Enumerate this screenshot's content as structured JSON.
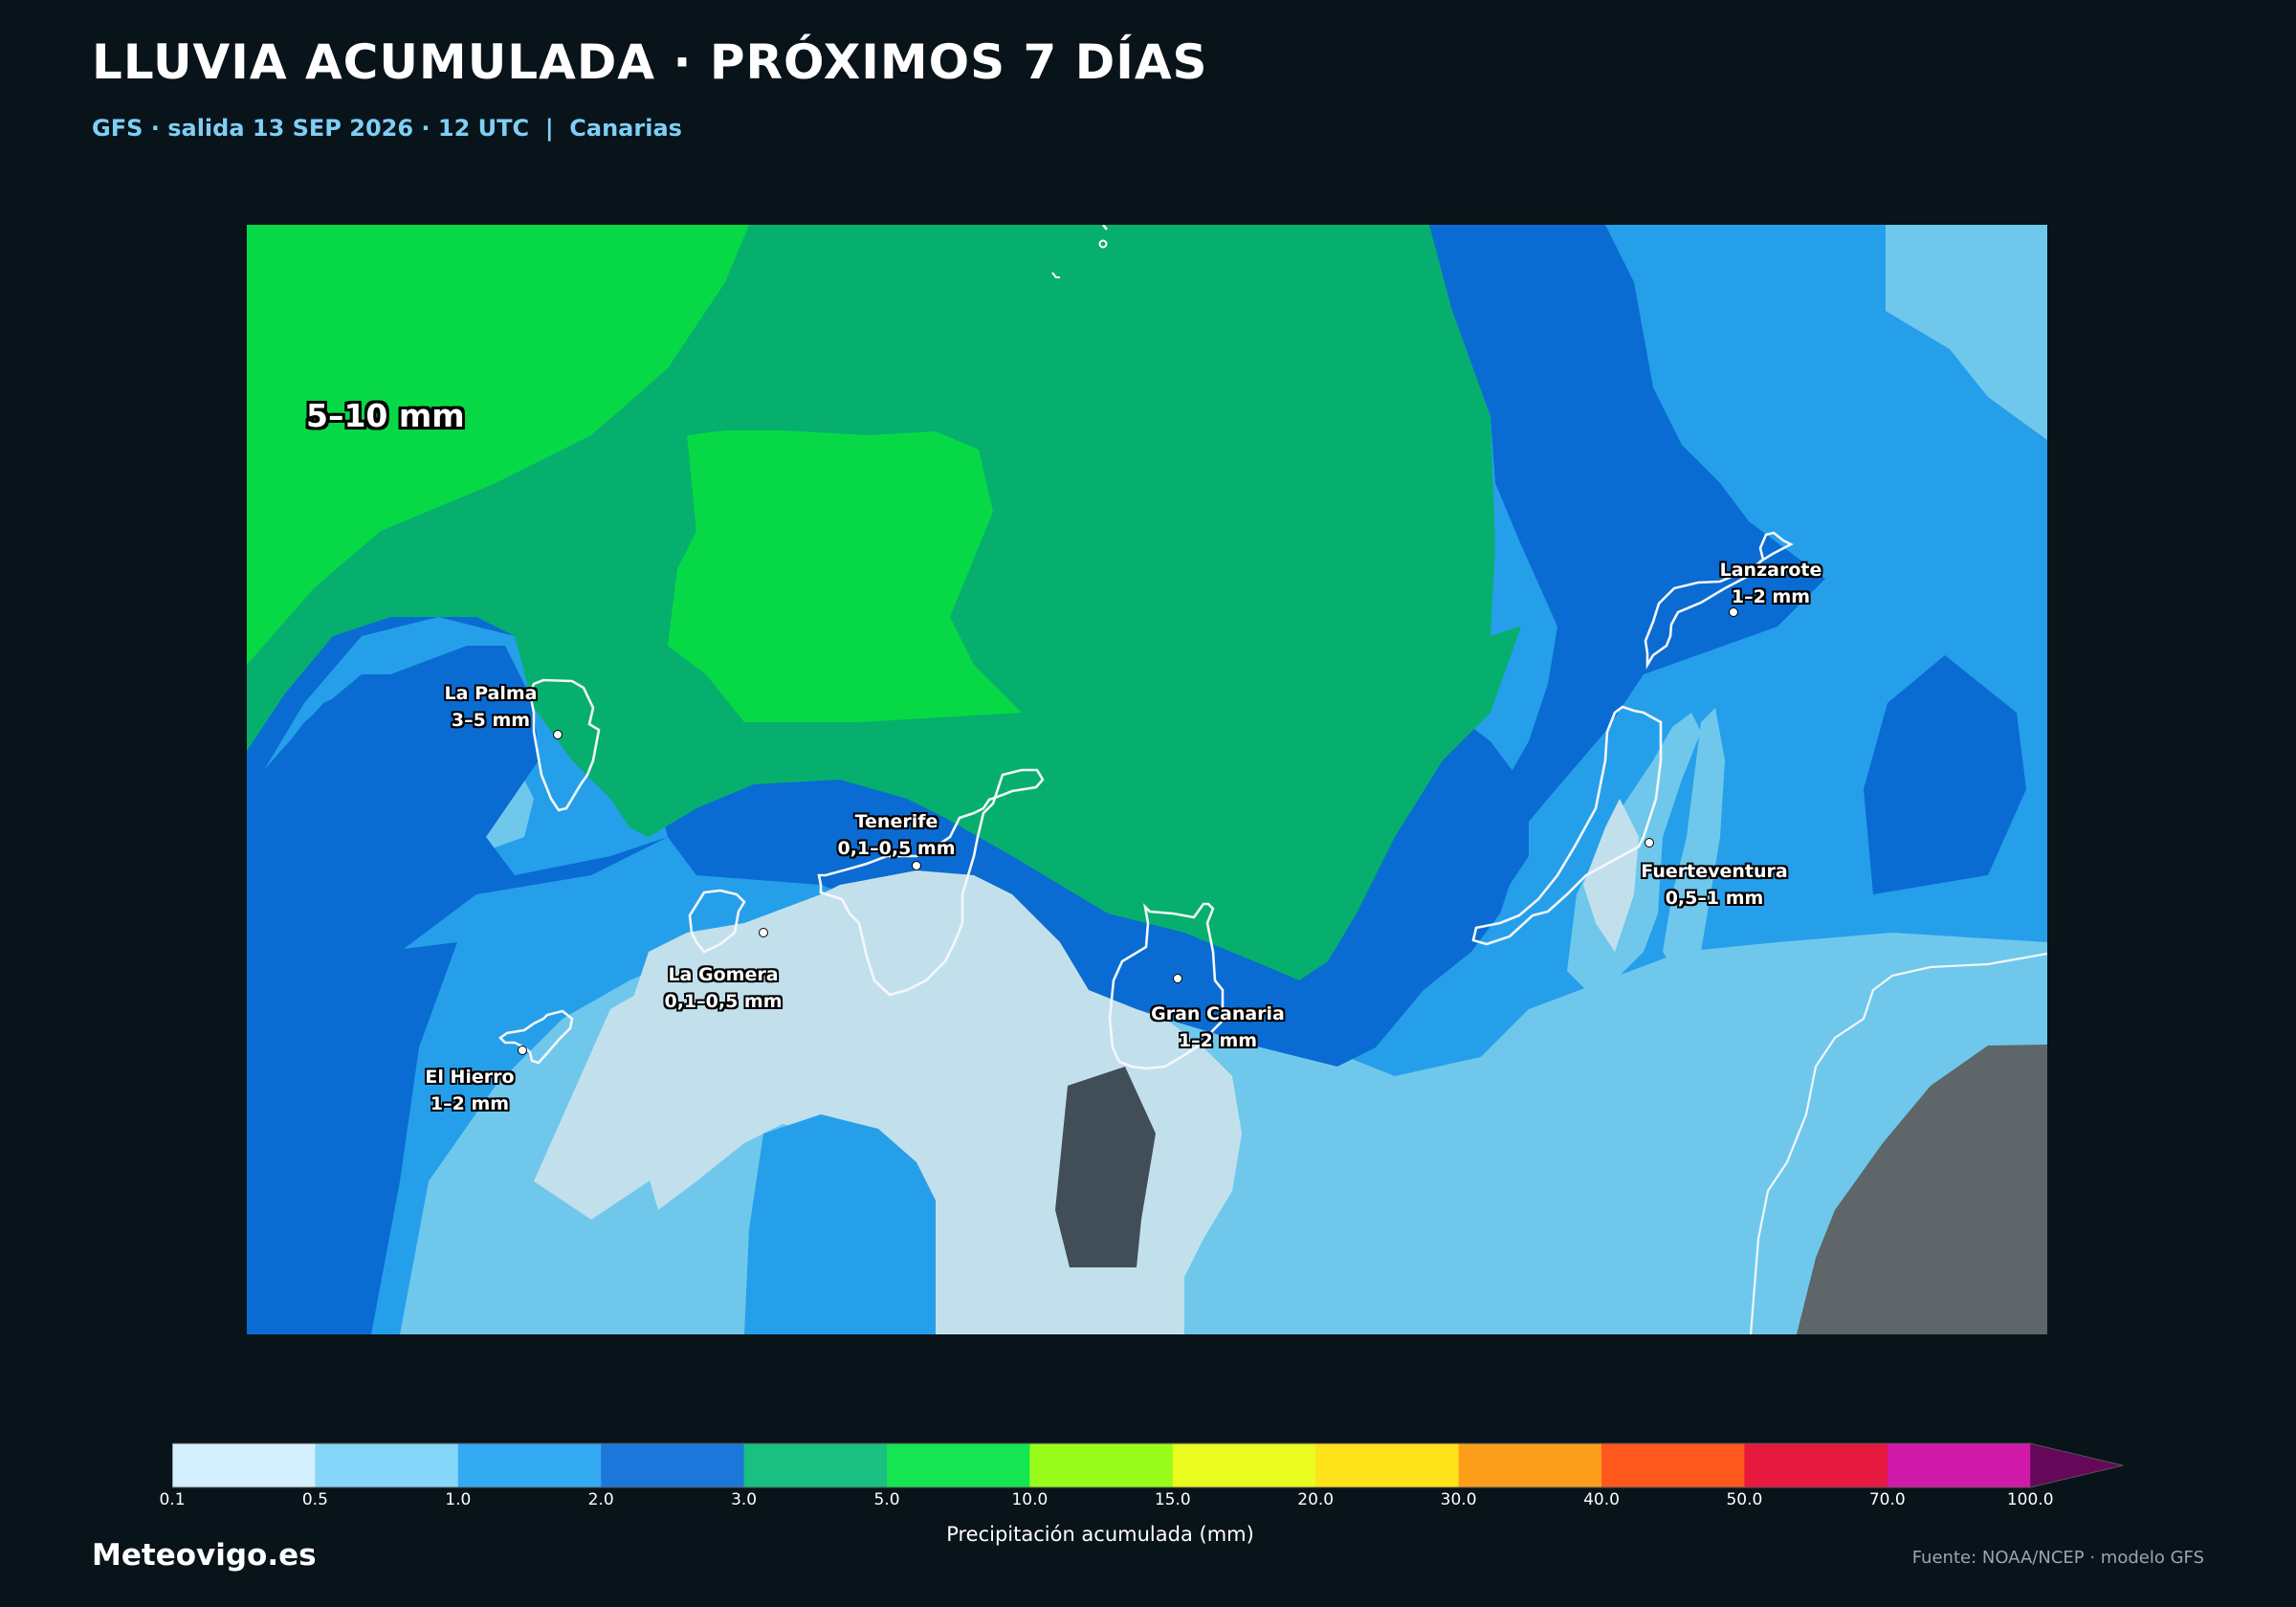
{
  "header": {
    "title": "LLUVIA ACUMULADA · PRÓXIMOS 7 DÍAS",
    "subtitle": "GFS · salida 13 SEP 2026 · 12 UTC  |  Canarias"
  },
  "map": {
    "region_label": "5–10 mm",
    "islands": [
      {
        "name": "La Palma",
        "value": "3–5 mm"
      },
      {
        "name": "Tenerife",
        "value": "0,1–0,5 mm"
      },
      {
        "name": "La Gomera",
        "value": "0,1–0,5 mm"
      },
      {
        "name": "El Hierro",
        "value": "1–2 mm"
      },
      {
        "name": "Gran Canaria",
        "value": "1–2 mm"
      },
      {
        "name": "Lanzarote",
        "value": "1–2 mm"
      },
      {
        "name": "Fuerteventura",
        "value": "0,5–1 mm"
      }
    ]
  },
  "colorbar": {
    "ticks": [
      "0.1",
      "0.5",
      "1.0",
      "2.0",
      "3.0",
      "5.0",
      "10.0",
      "15.0",
      "20.0",
      "30.0",
      "40.0",
      "50.0",
      "70.0",
      "100.0"
    ],
    "colors": [
      "#d4f0fe",
      "#86d6f9",
      "#33aaf2",
      "#1b78da",
      "#19c081",
      "#15e552",
      "#98fb1a",
      "#e9fb1f",
      "#fee21a",
      "#fe9f1b",
      "#fe581d",
      "#e8193e",
      "#d11aa9"
    ],
    "extend_color": "#65085a",
    "label": "Precipitación acumulada (mm)"
  },
  "footer": {
    "brand": "Meteovigo.es",
    "source": "Fuente: NOAA/NCEP · modelo GFS"
  }
}
